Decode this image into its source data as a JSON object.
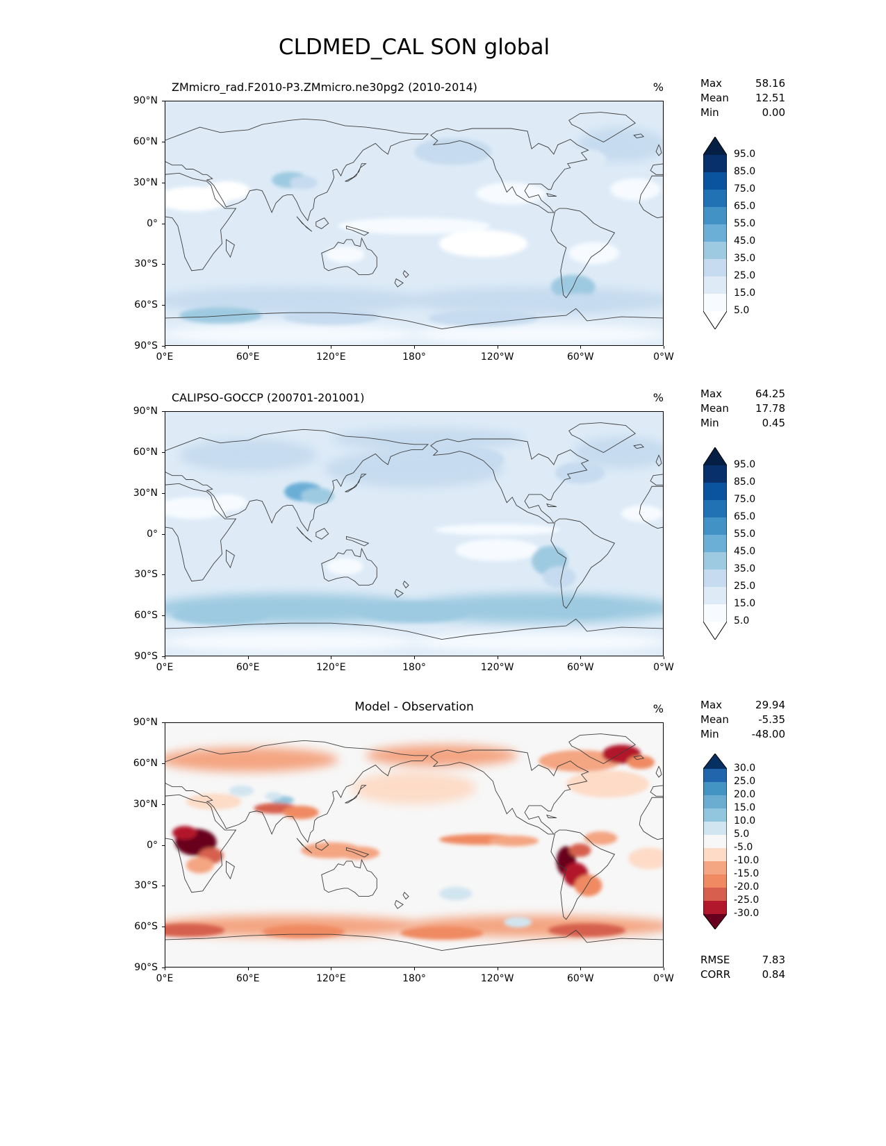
{
  "figure_title": "CLDMED_CAL SON global",
  "axes": {
    "x_ticks": [
      "0°E",
      "60°E",
      "120°E",
      "180°",
      "120°W",
      "60°W",
      "0°W"
    ],
    "y_ticks": [
      "90°N",
      "60°N",
      "30°N",
      "0°",
      "30°S",
      "60°S",
      "90°S"
    ]
  },
  "panels": [
    {
      "title": "ZMmicro_rad.F2010-P3.ZMmicro.ne30pg2 (2010-2014)",
      "unit": "%",
      "stats": [
        {
          "label": "Max",
          "value": "58.16"
        },
        {
          "label": "Mean",
          "value": "12.51"
        },
        {
          "label": "Min",
          "value": "0.00"
        }
      ],
      "colorbar_labels": [
        "95.0",
        "85.0",
        "75.0",
        "65.0",
        "55.0",
        "45.0",
        "35.0",
        "25.0",
        "15.0",
        "5.0"
      ]
    },
    {
      "title": "CALIPSO-GOCCP (200701-201001)",
      "unit": "%",
      "stats": [
        {
          "label": "Max",
          "value": "64.25"
        },
        {
          "label": "Mean",
          "value": "17.78"
        },
        {
          "label": "Min",
          "value": "0.45"
        }
      ],
      "colorbar_labels": [
        "95.0",
        "85.0",
        "75.0",
        "65.0",
        "55.0",
        "45.0",
        "35.0",
        "25.0",
        "15.0",
        "5.0"
      ]
    },
    {
      "title": "Model - Observation",
      "unit": "%",
      "stats": [
        {
          "label": "Max",
          "value": "29.94"
        },
        {
          "label": "Mean",
          "value": "-5.35"
        },
        {
          "label": "Min",
          "value": "-48.00"
        }
      ],
      "colorbar_labels": [
        "30.0",
        "25.0",
        "20.0",
        "15.0",
        "10.0",
        "5.0",
        "-5.0",
        "-10.0",
        "-15.0",
        "-20.0",
        "-25.0",
        "-30.0"
      ]
    }
  ],
  "extra_stats": [
    {
      "label": "RMSE",
      "value": "7.83"
    },
    {
      "label": "CORR",
      "value": "0.84"
    }
  ],
  "chart_data": [
    {
      "type": "heatmap",
      "title": "ZMmicro_rad.F2010-P3.ZMmicro.ne30pg2 (2010-2014)",
      "unit": "%",
      "projection": "equirectangular, longitudes 0°E through 180° to 0°W",
      "x_ticks": [
        "0°E",
        "60°E",
        "120°E",
        "180°",
        "120°W",
        "60°W",
        "0°W"
      ],
      "y_ticks": [
        "90°N",
        "60°N",
        "30°N",
        "0°",
        "30°S",
        "60°S",
        "90°S"
      ],
      "stats": {
        "max": 58.16,
        "mean": 12.51,
        "min": 0.0
      },
      "levels": [
        5,
        15,
        25,
        35,
        45,
        55,
        65,
        75,
        85,
        95
      ],
      "colors": [
        "#f7fbff",
        "#deebf7",
        "#c6dbef",
        "#9ecae1",
        "#6baed6",
        "#4292c6",
        "#2171b5",
        "#0a539f",
        "#08306b"
      ],
      "under_color": "#ffffff",
      "over_color": "#041f43",
      "base_value": 17,
      "regions_format": [
        "lon_deg_east",
        "lat_deg",
        "rx_deg",
        "ry_deg",
        "value_percent"
      ],
      "regions": [
        [
          90,
          -57,
          100,
          10,
          26
        ],
        [
          270,
          -57,
          100,
          10,
          26
        ],
        [
          90,
          -82,
          95,
          7,
          10
        ],
        [
          270,
          -82,
          95,
          7,
          10
        ],
        [
          180,
          48,
          65,
          14,
          24
        ],
        [
          208,
          53,
          28,
          10,
          28
        ],
        [
          330,
          58,
          32,
          13,
          26
        ],
        [
          303,
          47,
          16,
          8,
          22
        ],
        [
          55,
          52,
          45,
          12,
          20
        ],
        [
          135,
          58,
          35,
          10,
          22
        ],
        [
          190,
          68,
          60,
          8,
          22
        ],
        [
          20,
          18,
          26,
          9,
          4
        ],
        [
          45,
          24,
          16,
          7,
          3
        ],
        [
          230,
          -15,
          32,
          10,
          4
        ],
        [
          310,
          -22,
          18,
          8,
          5
        ],
        [
          250,
          22,
          25,
          8,
          6
        ],
        [
          340,
          25,
          18,
          8,
          6
        ],
        [
          130,
          -23,
          14,
          6,
          5
        ],
        [
          180,
          -2,
          55,
          6,
          8
        ],
        [
          90,
          -8,
          40,
          9,
          16
        ],
        [
          20,
          -2,
          12,
          7,
          18
        ],
        [
          90,
          32,
          13,
          6,
          44
        ],
        [
          100,
          30,
          10,
          5,
          32
        ],
        [
          295,
          -47,
          16,
          9,
          36
        ],
        [
          300,
          -58,
          25,
          6,
          32
        ],
        [
          40,
          -68,
          30,
          6,
          36
        ],
        [
          120,
          -69,
          35,
          6,
          28
        ],
        [
          230,
          -70,
          40,
          6,
          26
        ]
      ]
    },
    {
      "type": "heatmap",
      "title": "CALIPSO-GOCCP (200701-201001)",
      "unit": "%",
      "projection": "equirectangular, longitudes 0°E through 180° to 0°W",
      "x_ticks": [
        "0°E",
        "60°E",
        "120°E",
        "180°",
        "120°W",
        "60°W",
        "0°W"
      ],
      "y_ticks": [
        "90°N",
        "60°N",
        "30°N",
        "0°",
        "30°S",
        "60°S",
        "90°S"
      ],
      "stats": {
        "max": 64.25,
        "mean": 17.78,
        "min": 0.45
      },
      "levels": [
        5,
        15,
        25,
        35,
        45,
        55,
        65,
        75,
        85,
        95
      ],
      "colors": [
        "#f7fbff",
        "#deebf7",
        "#c6dbef",
        "#9ecae1",
        "#6baed6",
        "#4292c6",
        "#2171b5",
        "#0a539f",
        "#08306b"
      ],
      "under_color": "#ffffff",
      "over_color": "#041f43",
      "base_value": 22,
      "regions_format": [
        "lon_deg_east",
        "lat_deg",
        "rx_deg",
        "ry_deg",
        "value_percent"
      ],
      "regions": [
        [
          90,
          -55,
          100,
          11,
          40
        ],
        [
          270,
          -55,
          100,
          11,
          40
        ],
        [
          90,
          -80,
          95,
          7,
          6
        ],
        [
          270,
          -80,
          95,
          7,
          6
        ],
        [
          180,
          48,
          65,
          14,
          32
        ],
        [
          215,
          55,
          30,
          10,
          30
        ],
        [
          330,
          60,
          35,
          12,
          34
        ],
        [
          300,
          45,
          18,
          8,
          26
        ],
        [
          60,
          58,
          50,
          12,
          28
        ],
        [
          190,
          70,
          70,
          8,
          30
        ],
        [
          80,
          -7,
          35,
          9,
          24
        ],
        [
          150,
          -5,
          25,
          7,
          24
        ],
        [
          20,
          19,
          25,
          8,
          8
        ],
        [
          45,
          23,
          14,
          6,
          7
        ],
        [
          240,
          -12,
          30,
          8,
          8
        ],
        [
          130,
          -24,
          13,
          6,
          10
        ],
        [
          240,
          3,
          45,
          4,
          7
        ],
        [
          345,
          15,
          15,
          6,
          10
        ],
        [
          100,
          31,
          14,
          7,
          46
        ],
        [
          110,
          28,
          12,
          6,
          36
        ],
        [
          278,
          -20,
          13,
          11,
          36
        ],
        [
          285,
          -32,
          12,
          8,
          28
        ],
        [
          300,
          -55,
          30,
          7,
          44
        ],
        [
          180,
          -58,
          40,
          8,
          44
        ],
        [
          40,
          -60,
          35,
          7,
          42
        ]
      ]
    },
    {
      "type": "heatmap",
      "title": "Model - Observation",
      "unit": "%",
      "projection": "equirectangular, longitudes 0°E through 180° to 0°W",
      "x_ticks": [
        "0°E",
        "60°E",
        "120°E",
        "180°",
        "120°W",
        "60°W",
        "0°W"
      ],
      "y_ticks": [
        "90°N",
        "60°N",
        "30°N",
        "0°",
        "30°S",
        "60°S",
        "90°S"
      ],
      "stats": {
        "max": 29.94,
        "mean": -5.35,
        "min": -48.0,
        "rmse": 7.83,
        "corr": 0.84
      },
      "levels": [
        -30,
        -25,
        -20,
        -15,
        -10,
        -5,
        5,
        10,
        15,
        20,
        25,
        30
      ],
      "colors": [
        "#b2182b",
        "#d6604d",
        "#ef8a62",
        "#f4a582",
        "#fddbc7",
        "#f7f7f7",
        "#d1e5f0",
        "#92c5de",
        "#6badd0",
        "#4393c3",
        "#2166ac"
      ],
      "under_color": "#67001f",
      "over_color": "#053061",
      "base_value": -3,
      "regions_format": [
        "lon_deg_east",
        "lat_deg",
        "rx_deg",
        "ry_deg",
        "value_percent"
      ],
      "regions": [
        [
          90,
          -60,
          100,
          8,
          -14
        ],
        [
          270,
          -60,
          100,
          8,
          -14
        ],
        [
          60,
          63,
          65,
          9,
          -13
        ],
        [
          200,
          66,
          55,
          8,
          -13
        ],
        [
          300,
          62,
          30,
          8,
          -12
        ],
        [
          180,
          42,
          45,
          12,
          -7
        ],
        [
          320,
          45,
          30,
          10,
          -7
        ],
        [
          35,
          32,
          20,
          6,
          -10
        ],
        [
          350,
          -10,
          15,
          8,
          -8
        ],
        [
          315,
          5,
          12,
          5,
          -12
        ],
        [
          120,
          -4,
          22,
          6,
          -14
        ],
        [
          140,
          -6,
          15,
          5,
          -12
        ],
        [
          22,
          2,
          15,
          10,
          -34
        ],
        [
          14,
          9,
          9,
          5,
          -26
        ],
        [
          33,
          -8,
          9,
          6,
          -22
        ],
        [
          25,
          -15,
          10,
          6,
          -14
        ],
        [
          290,
          -12,
          7,
          11,
          -38
        ],
        [
          297,
          -22,
          9,
          9,
          -26
        ],
        [
          306,
          -30,
          10,
          8,
          -18
        ],
        [
          300,
          -4,
          8,
          5,
          -22
        ],
        [
          85,
          33,
          8,
          3,
          13
        ],
        [
          78,
          36,
          6,
          3,
          8
        ],
        [
          55,
          40,
          9,
          4,
          9
        ],
        [
          80,
          27,
          16,
          4,
          -24
        ],
        [
          98,
          24,
          13,
          5,
          -18
        ],
        [
          228,
          4,
          30,
          4,
          -20
        ],
        [
          252,
          3,
          18,
          4,
          -14
        ],
        [
          330,
          67,
          14,
          7,
          -30
        ],
        [
          344,
          61,
          10,
          5,
          -20
        ],
        [
          15,
          -63,
          28,
          5,
          -24
        ],
        [
          305,
          -63,
          28,
          5,
          -22
        ],
        [
          200,
          -65,
          30,
          5,
          -18
        ],
        [
          100,
          -64,
          30,
          5,
          -18
        ],
        [
          210,
          -36,
          12,
          5,
          8
        ],
        [
          255,
          -57,
          10,
          4,
          9
        ]
      ]
    }
  ]
}
